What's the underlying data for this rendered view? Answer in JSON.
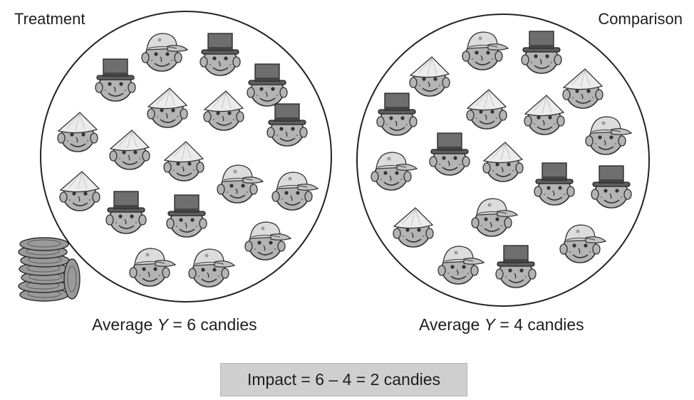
{
  "labels": {
    "treatment": "Treatment",
    "comparison": "Comparison"
  },
  "averages": {
    "treatment": {
      "prefix": "Average ",
      "variable": "Y",
      "suffix": " = 6 candies"
    },
    "comparison": {
      "prefix": "Average ",
      "variable": "Y",
      "suffix": " = 4 candies"
    }
  },
  "impact": "Impact = 6 – 4 = 2 candies",
  "groups": {
    "treatment": [
      "cap",
      "top-hat",
      "top-hat",
      "top-hat",
      "cone",
      "cone",
      "cone",
      "top-hat",
      "cone",
      "cone",
      "cap",
      "cone",
      "cap",
      "top-hat",
      "top-hat",
      "cap",
      "cap",
      "cap",
      "top-hat",
      "cap"
    ],
    "comparison": [
      "cap",
      "top-hat",
      "cone",
      "cone",
      "top-hat",
      "cone",
      "cone",
      "cap",
      "cap",
      "top-hat",
      "cone",
      "top-hat",
      "top-hat",
      "cone",
      "cap",
      "cap",
      "top-hat",
      "cap"
    ]
  },
  "icons": {
    "coins": "coin-stack-icon",
    "face": "child-face-icon"
  },
  "colors": {
    "circle": "#222222",
    "face": "#b4b4b4",
    "hat": "#6e6e6e",
    "cone": "#ececec",
    "cap": "#dcdcdc",
    "impact_bg": "#cfcfcf"
  }
}
